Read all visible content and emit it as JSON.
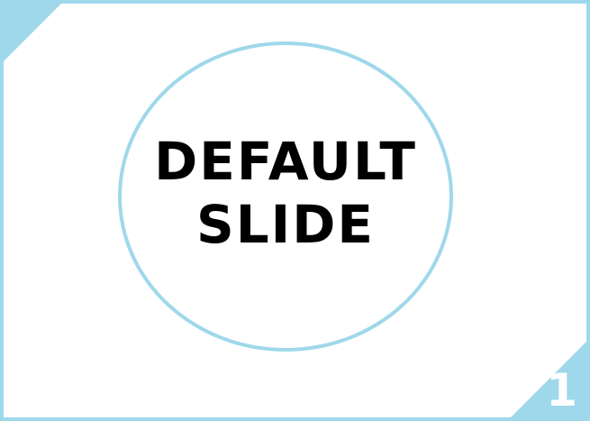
{
  "slide": {
    "title_line1": "DEFAULT",
    "title_line2": "SLIDE",
    "number": "1"
  },
  "colors": {
    "accent": "#9fd8ea",
    "background": "#ffffff",
    "text": "#000000"
  }
}
